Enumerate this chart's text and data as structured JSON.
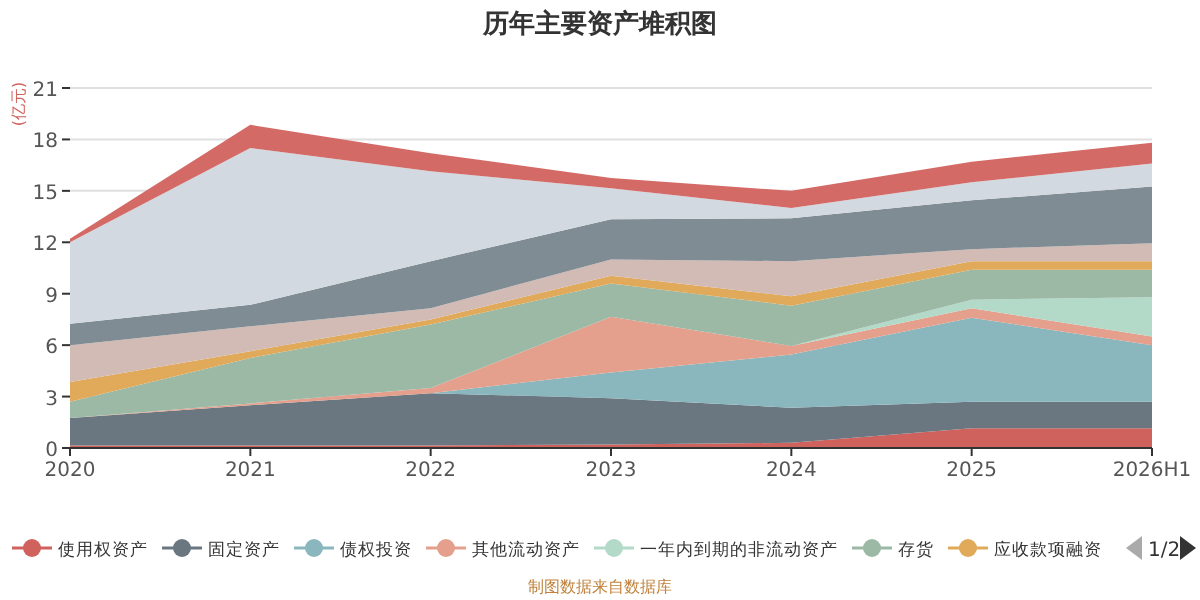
{
  "chart_data": {
    "type": "area",
    "stacked": true,
    "title": "历年主要资产堆积图",
    "ylabel": "(亿元)",
    "categories": [
      "2020",
      "2021",
      "2022",
      "2023",
      "2024",
      "2025",
      "2026H1"
    ],
    "ylim": [
      0,
      21
    ],
    "yticks": [
      0,
      3,
      6,
      9,
      12,
      15,
      18,
      21
    ],
    "grid": "y",
    "legend": "bottom",
    "series": [
      {
        "name": "使用权资产",
        "color": "#d0625d",
        "values": [
          0.15,
          0.15,
          0.15,
          0.2,
          0.3,
          1.15,
          1.15
        ]
      },
      {
        "name": "固定资产",
        "color": "#6a7781",
        "values": [
          1.6,
          2.35,
          3.05,
          2.7,
          2.05,
          1.55,
          1.55
        ]
      },
      {
        "name": "债权投资",
        "color": "#8ab7be",
        "values": [
          0,
          0,
          0,
          1.5,
          3.1,
          4.9,
          3.3
        ]
      },
      {
        "name": "其他流动资产",
        "color": "#e4a08c",
        "values": [
          0,
          0.1,
          0.3,
          3.25,
          0.5,
          0.55,
          0.5
        ]
      },
      {
        "name": "一年内到期的非流动资产",
        "color": "#b3d9c8",
        "values": [
          0,
          0,
          0,
          0,
          0,
          0.5,
          2.3
        ]
      },
      {
        "name": "存货",
        "color": "#9cb9a6",
        "values": [
          0.95,
          2.65,
          3.7,
          1.95,
          2.35,
          1.75,
          1.6
        ]
      },
      {
        "name": "应收款项融资",
        "color": "#e0aa5a",
        "values": [
          1.15,
          0.4,
          0.3,
          0.45,
          0.55,
          0.5,
          0.5
        ]
      },
      {
        "color": "#d3bbb5",
        "values": [
          2.15,
          1.45,
          0.65,
          0.95,
          2.05,
          0.7,
          1.05
        ]
      },
      {
        "color": "#7f8c94",
        "values": [
          1.25,
          1.25,
          2.75,
          2.35,
          2.5,
          2.85,
          3.3
        ]
      },
      {
        "color": "#d3d9e0",
        "values": [
          4.75,
          9.15,
          5.25,
          1.8,
          0.6,
          1.05,
          1.35
        ]
      },
      {
        "color": "#d46a66",
        "values": [
          0.2,
          1.35,
          1.05,
          0.6,
          1.0,
          1.2,
          1.2
        ]
      }
    ],
    "annotations": [
      "1/2",
      "制图数据来自数据库"
    ]
  }
}
